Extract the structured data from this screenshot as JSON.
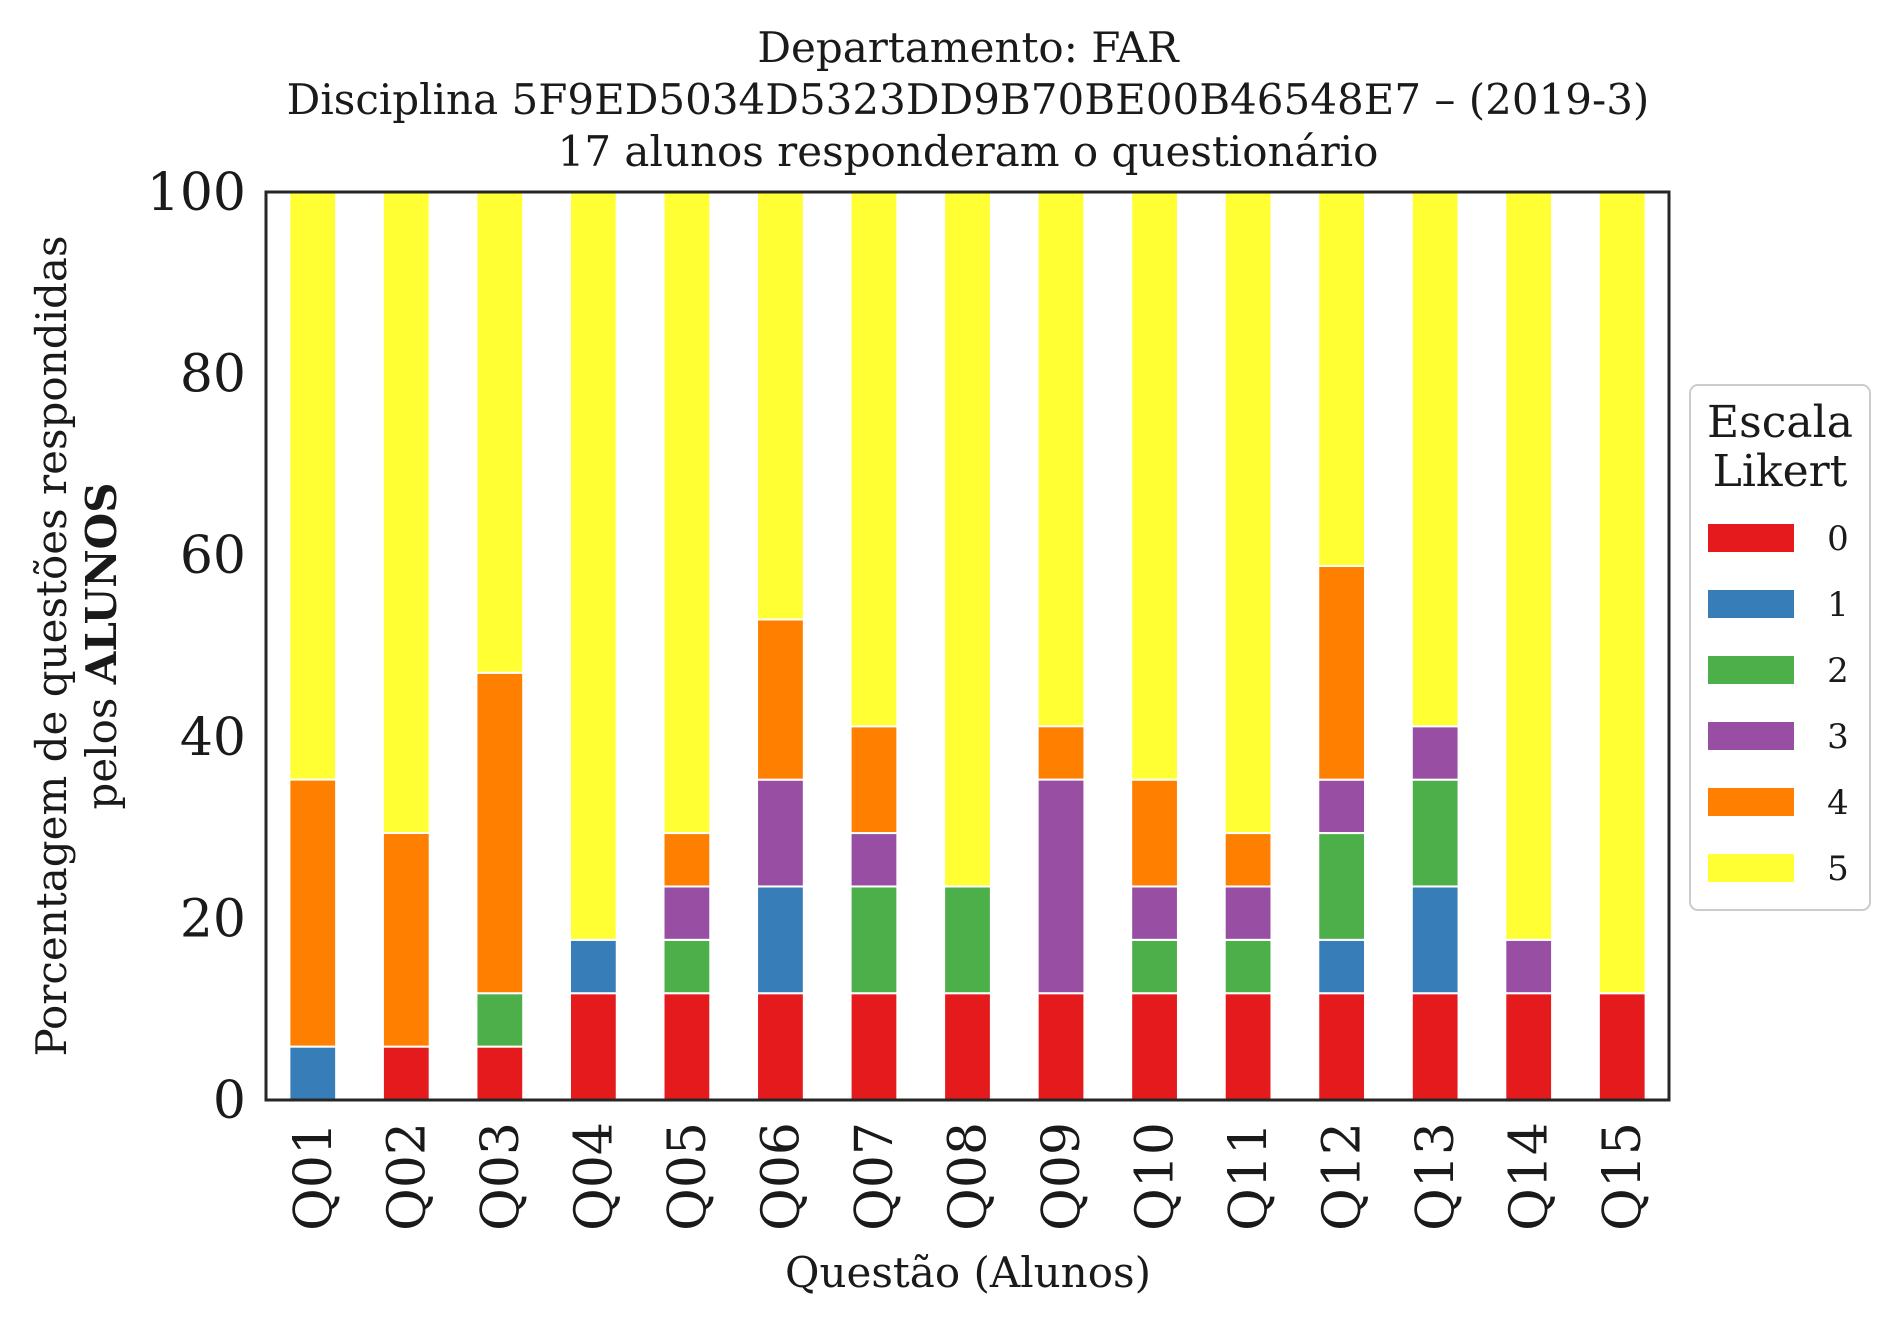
{
  "chart_data": {
    "type": "bar",
    "stacked": true,
    "title_lines": [
      "Departamento: FAR",
      "Disciplina 5F9ED5034D5323DD9B70BE00B46548E7 – (2019-3)",
      "17 alunos responderam o questionário"
    ],
    "xlabel": "Questão (Alunos)",
    "ylabel_line1": "Porcentagem de questões respondidas",
    "ylabel_line2_prefix": "pelos ",
    "ylabel_line2_bold": "ALUNOS",
    "ylim": [
      0,
      100
    ],
    "yticks": [
      "0",
      "20",
      "40",
      "60",
      "80",
      "100"
    ],
    "grid": false,
    "legend_placement": "right",
    "legend_title_lines": [
      "Escala",
      "Likert"
    ],
    "categories": [
      "Q01",
      "Q02",
      "Q03",
      "Q04",
      "Q05",
      "Q06",
      "Q07",
      "Q08",
      "Q09",
      "Q10",
      "Q11",
      "Q12",
      "Q13",
      "Q14",
      "Q15"
    ],
    "series": [
      {
        "name": "0",
        "color": "#e41a1c",
        "values": [
          0,
          5.88,
          5.88,
          11.76,
          11.76,
          11.76,
          11.76,
          11.76,
          11.76,
          11.76,
          11.76,
          11.76,
          11.76,
          11.76,
          11.76
        ]
      },
      {
        "name": "1",
        "color": "#377eb8",
        "values": [
          5.88,
          0,
          0,
          5.88,
          0,
          11.76,
          0,
          0,
          0,
          0,
          0,
          5.88,
          11.76,
          0,
          0
        ]
      },
      {
        "name": "2",
        "color": "#4daf4a",
        "values": [
          0,
          0,
          5.88,
          0,
          5.88,
          0,
          11.76,
          11.76,
          0,
          5.88,
          5.88,
          11.76,
          11.76,
          0,
          0
        ]
      },
      {
        "name": "3",
        "color": "#984ea3",
        "values": [
          0,
          0,
          0,
          0,
          5.88,
          11.76,
          5.88,
          0,
          23.53,
          5.88,
          5.88,
          5.88,
          5.88,
          5.88,
          0
        ]
      },
      {
        "name": "4",
        "color": "#ff7f00",
        "values": [
          29.41,
          23.53,
          35.29,
          0,
          5.88,
          17.65,
          11.76,
          0,
          5.88,
          11.76,
          5.88,
          23.53,
          0,
          0,
          0
        ]
      },
      {
        "name": "5",
        "color": "#ffff33",
        "values": [
          64.71,
          70.59,
          52.94,
          82.35,
          70.59,
          47.06,
          58.82,
          76.47,
          58.82,
          64.71,
          70.59,
          41.18,
          58.82,
          82.35,
          88.24
        ]
      }
    ]
  }
}
